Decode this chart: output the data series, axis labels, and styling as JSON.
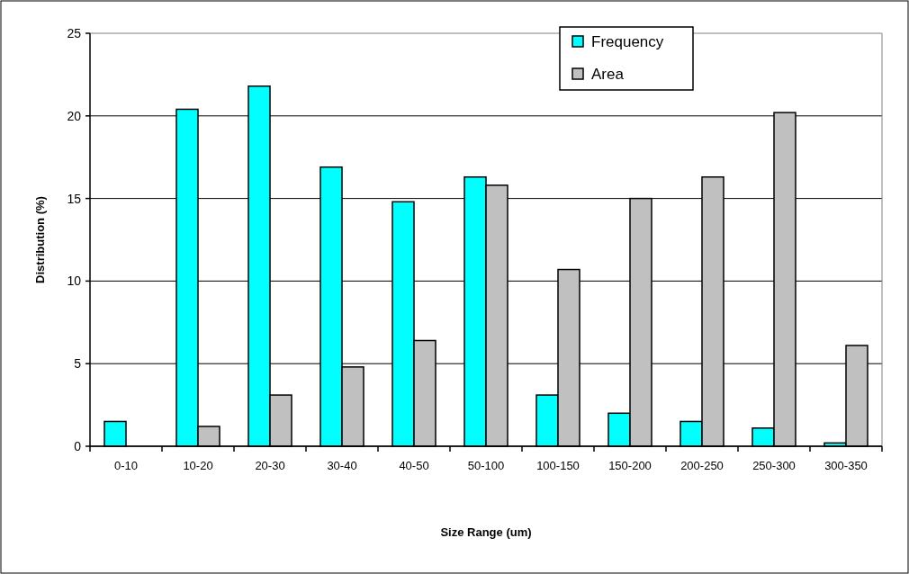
{
  "chart_data": {
    "type": "bar",
    "xlabel": "Size Range (um)",
    "ylabel": "Distribution (%)",
    "categories": [
      "0-10",
      "10-20",
      "20-30",
      "30-40",
      "40-50",
      "50-100",
      "100-150",
      "150-200",
      "200-250",
      "250-300",
      "300-350"
    ],
    "series": [
      {
        "name": "Frequency",
        "color": "#00ffff",
        "values": [
          1.5,
          20.4,
          21.8,
          16.9,
          14.8,
          16.3,
          3.1,
          2.0,
          1.5,
          1.1,
          0.2
        ]
      },
      {
        "name": "Area",
        "color": "#c0c0c0",
        "values": [
          0,
          1.2,
          3.1,
          4.8,
          6.4,
          15.8,
          10.7,
          15.0,
          16.3,
          20.2,
          6.1
        ]
      }
    ],
    "ylim": [
      0,
      25
    ],
    "yticks": [
      0,
      5,
      10,
      15,
      20,
      25
    ],
    "grid": "y",
    "legend": "top right"
  }
}
